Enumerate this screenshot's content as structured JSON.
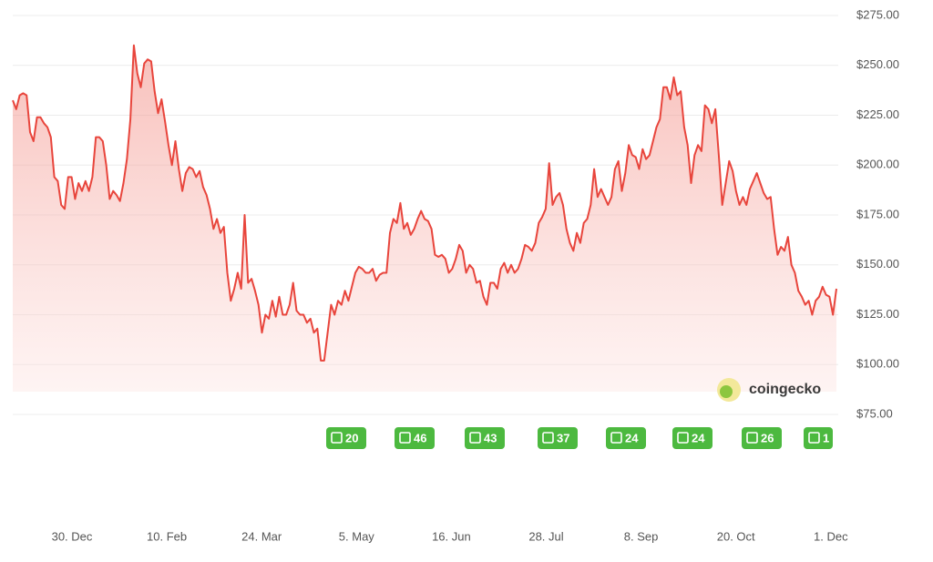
{
  "chart_data": {
    "type": "line",
    "series": [
      {
        "name": "Price",
        "color": "#e8453c",
        "values": [
          232.5,
          228,
          235,
          236,
          235,
          216.5,
          212,
          224,
          224,
          221,
          219,
          214,
          194,
          192,
          180,
          178,
          194,
          194,
          183,
          191,
          187,
          192,
          187,
          194,
          214,
          214,
          212,
          200,
          183,
          187,
          185,
          182,
          191,
          203,
          223,
          260,
          246,
          239,
          251,
          253,
          252,
          237,
          226,
          233,
          222,
          210,
          200,
          212,
          198,
          187,
          196,
          199,
          198,
          194,
          197,
          189,
          185,
          178,
          168,
          173,
          166,
          169,
          146,
          132,
          138,
          146,
          138,
          175,
          141,
          143,
          137,
          130,
          116,
          125,
          123,
          132,
          124,
          134,
          125,
          125,
          130,
          141,
          127,
          125,
          125,
          121,
          123,
          116,
          118,
          102,
          102,
          116,
          130,
          125,
          132,
          130,
          137,
          132,
          139,
          146,
          149,
          148,
          146,
          146,
          148,
          142,
          145,
          146,
          146,
          166,
          173,
          171,
          181,
          168,
          171,
          165,
          168,
          173,
          177,
          173,
          172,
          168,
          155,
          154,
          155,
          153,
          146,
          148,
          153,
          160,
          157,
          146,
          150,
          148,
          141,
          142,
          134,
          130,
          141,
          141,
          138,
          148,
          151,
          146,
          150,
          146,
          148,
          153,
          160,
          159,
          157,
          161,
          171,
          174,
          178,
          201,
          180,
          184,
          186,
          180,
          168,
          161,
          157,
          166,
          161,
          171,
          173,
          180,
          198,
          184,
          188,
          184,
          180,
          184,
          198,
          202,
          187,
          196,
          210,
          205,
          204,
          198,
          208,
          203,
          205,
          212,
          219,
          223,
          239,
          239,
          233,
          244,
          235,
          237,
          219,
          210,
          191,
          205,
          210,
          207,
          230,
          228,
          221,
          228,
          205,
          180,
          191,
          202,
          197,
          187,
          180,
          184,
          180,
          188,
          192,
          196,
          191,
          186,
          183,
          184,
          168,
          155,
          159,
          157,
          164,
          150,
          146,
          137,
          134,
          130,
          132,
          125,
          132,
          134,
          139,
          135,
          134,
          125,
          138
        ]
      }
    ],
    "ylim": [
      75,
      275
    ],
    "yticks": [
      {
        "value": 75,
        "label": "$75.00"
      },
      {
        "value": 100,
        "label": "$100.00"
      },
      {
        "value": 125,
        "label": "$125.00"
      },
      {
        "value": 150,
        "label": "$150.00"
      },
      {
        "value": 175,
        "label": "$175.00"
      },
      {
        "value": 200,
        "label": "$200.00"
      },
      {
        "value": 225,
        "label": "$225.00"
      },
      {
        "value": 250,
        "label": "$250.00"
      },
      {
        "value": 275,
        "label": "$275.00"
      }
    ],
    "xtick_labels": [
      "30. Dec",
      "10. Feb",
      "24. Mar",
      "5. May",
      "16. Jun",
      "28. Jul",
      "8. Sep",
      "20. Oct",
      "1. Dec"
    ],
    "news_counts": [
      20,
      46,
      43,
      37,
      24,
      24,
      26,
      1
    ],
    "watermark": "coingecko",
    "grid": true
  }
}
